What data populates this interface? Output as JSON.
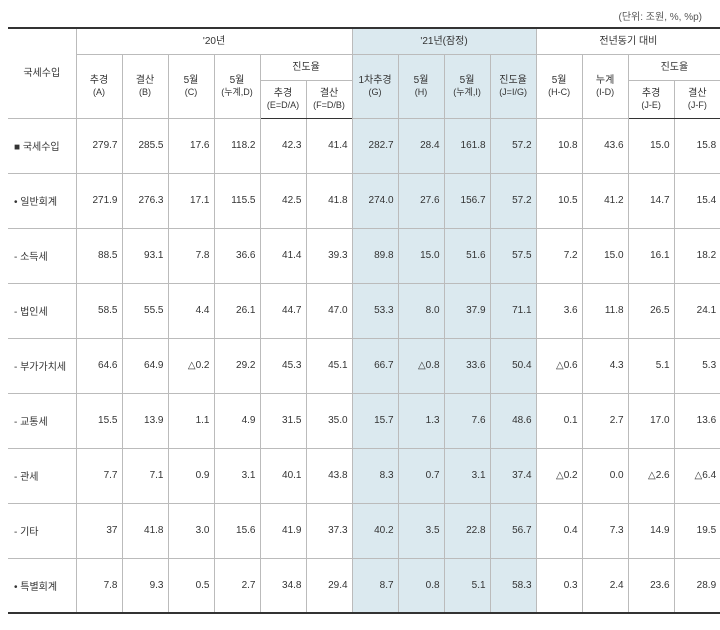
{
  "unit_note": "(단위: 조원, %, %p)",
  "headers": {
    "rowlabel": "국세수입",
    "g20": "'20년",
    "g21": "'21년(잠정)",
    "gYoy": "전년동기 대비",
    "A": "추경",
    "A_sub": "(A)",
    "B": "결산",
    "B_sub": "(B)",
    "C": "5월",
    "C_sub": "(C)",
    "D": "5월",
    "D_sub": "(누계,D)",
    "prog20": "진도율",
    "E": "추경",
    "E_sub": "(E=D/A)",
    "F": "결산",
    "F_sub": "(F=D/B)",
    "G": "1차추경",
    "G_sub": "(G)",
    "H": "5월",
    "H_sub": "(H)",
    "I": "5월",
    "I_sub": "(누계,I)",
    "J": "진도율",
    "J_sub": "(J=I/G)",
    "HC": "5월",
    "HC_sub": "(H-C)",
    "ID": "누계",
    "ID_sub": "(I-D)",
    "progYoy": "진도율",
    "JE": "추경",
    "JE_sub": "(J-E)",
    "JF": "결산",
    "JF_sub": "(J-F)"
  },
  "rows": [
    {
      "label": "■ 국세수입",
      "A": "279.7",
      "B": "285.5",
      "C": "17.6",
      "D": "118.2",
      "E": "42.3",
      "F": "41.4",
      "G": "282.7",
      "H": "28.4",
      "I": "161.8",
      "J": "57.2",
      "HC": "10.8",
      "ID": "43.6",
      "JE": "15.0",
      "JF": "15.8"
    },
    {
      "label": "• 일반회계",
      "A": "271.9",
      "B": "276.3",
      "C": "17.1",
      "D": "115.5",
      "E": "42.5",
      "F": "41.8",
      "G": "274.0",
      "H": "27.6",
      "I": "156.7",
      "J": "57.2",
      "HC": "10.5",
      "ID": "41.2",
      "JE": "14.7",
      "JF": "15.4"
    },
    {
      "label": "- 소득세",
      "A": "88.5",
      "B": "93.1",
      "C": "7.8",
      "D": "36.6",
      "E": "41.4",
      "F": "39.3",
      "G": "89.8",
      "H": "15.0",
      "I": "51.6",
      "J": "57.5",
      "HC": "7.2",
      "ID": "15.0",
      "JE": "16.1",
      "JF": "18.2"
    },
    {
      "label": "- 법인세",
      "A": "58.5",
      "B": "55.5",
      "C": "4.4",
      "D": "26.1",
      "E": "44.7",
      "F": "47.0",
      "G": "53.3",
      "H": "8.0",
      "I": "37.9",
      "J": "71.1",
      "HC": "3.6",
      "ID": "11.8",
      "JE": "26.5",
      "JF": "24.1"
    },
    {
      "label": "- 부가가치세",
      "A": "64.6",
      "B": "64.9",
      "C": "△0.2",
      "D": "29.2",
      "E": "45.3",
      "F": "45.1",
      "G": "66.7",
      "H": "△0.8",
      "I": "33.6",
      "J": "50.4",
      "HC": "△0.6",
      "ID": "4.3",
      "JE": "5.1",
      "JF": "5.3"
    },
    {
      "label": "- 교통세",
      "A": "15.5",
      "B": "13.9",
      "C": "1.1",
      "D": "4.9",
      "E": "31.5",
      "F": "35.0",
      "G": "15.7",
      "H": "1.3",
      "I": "7.6",
      "J": "48.6",
      "HC": "0.1",
      "ID": "2.7",
      "JE": "17.0",
      "JF": "13.6"
    },
    {
      "label": "- 관세",
      "A": "7.7",
      "B": "7.1",
      "C": "0.9",
      "D": "3.1",
      "E": "40.1",
      "F": "43.8",
      "G": "8.3",
      "H": "0.7",
      "I": "3.1",
      "J": "37.4",
      "HC": "△0.2",
      "ID": "0.0",
      "JE": "△2.6",
      "JF": "△6.4"
    },
    {
      "label": "- 기타",
      "A": "37",
      "B": "41.8",
      "C": "3.0",
      "D": "15.6",
      "E": "41.9",
      "F": "37.3",
      "G": "40.2",
      "H": "3.5",
      "I": "22.8",
      "J": "56.7",
      "HC": "0.4",
      "ID": "7.3",
      "JE": "14.9",
      "JF": "19.5"
    },
    {
      "label": "• 특별회계",
      "A": "7.8",
      "B": "9.3",
      "C": "0.5",
      "D": "2.7",
      "E": "34.8",
      "F": "29.4",
      "G": "8.7",
      "H": "0.8",
      "I": "5.1",
      "J": "58.3",
      "HC": "0.3",
      "ID": "2.4",
      "JE": "23.6",
      "JF": "28.9"
    }
  ]
}
